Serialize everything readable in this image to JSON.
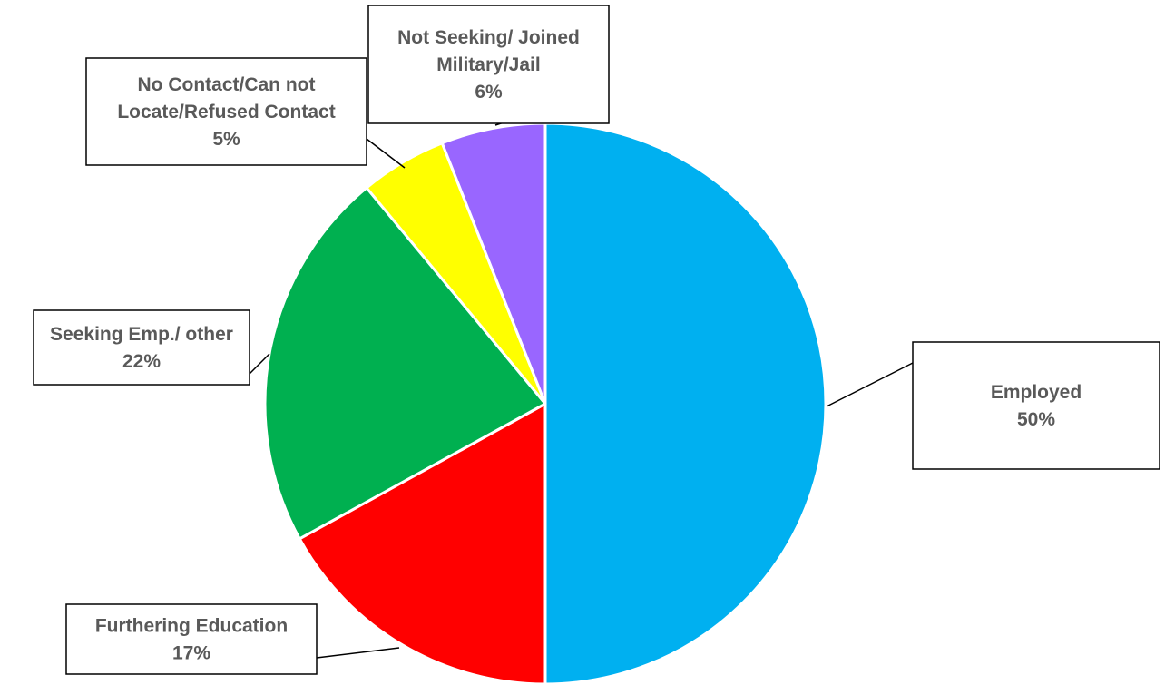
{
  "chart_data": {
    "type": "pie",
    "title": "",
    "start_angle_deg": 0,
    "direction": "clockwise",
    "slices": [
      {
        "label": "Employed",
        "value": 50,
        "display": "50%",
        "color": "#00B0F0"
      },
      {
        "label": "Furthering Education",
        "value": 17,
        "display": "17%",
        "color": "#FF0000"
      },
      {
        "label": "Seeking Emp./ other",
        "value": 22,
        "display": "22%",
        "color": "#00B050"
      },
      {
        "label": "No Contact/Can not Locate/Refused Contact",
        "value": 5,
        "display": "5%",
        "color": "#FFFF00"
      },
      {
        "label": "Not Seeking/ Joined Military/Jail",
        "value": 6,
        "display": "6%",
        "color": "#9966FF"
      }
    ],
    "callout_lines": [
      [
        "Employed",
        "50%"
      ],
      [
        "Furthering Education",
        "17%"
      ],
      [
        "Seeking Emp./ other",
        "22%"
      ],
      [
        "No Contact/Can not",
        "Locate/Refused Contact",
        "5%"
      ],
      [
        "Not Seeking/ Joined",
        "Military/Jail",
        "6%"
      ]
    ]
  }
}
